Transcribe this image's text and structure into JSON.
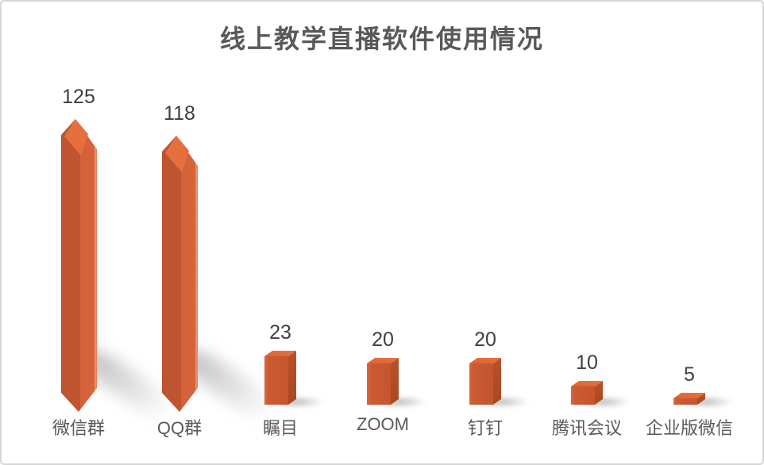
{
  "chart_data": {
    "type": "bar",
    "title": "线上教学直播软件使用情况",
    "categories": [
      "微信群",
      "QQ群",
      "瞩目",
      "ZOOM",
      "钉钉",
      "腾讯会议",
      "企业版微信"
    ],
    "values": [
      125,
      118,
      23,
      20,
      20,
      10,
      5
    ],
    "data_labels": [
      "125",
      "118",
      "23",
      "20",
      "20",
      "10",
      "5"
    ],
    "xlabel": "",
    "ylabel": "",
    "ylim": [
      0,
      125
    ],
    "axes_visible": false,
    "grid": false,
    "legend": false,
    "style_note": "3D orange columns: two tallest are pointed crystal/pencil shapes, shorter ones are 3D boxes, soft gray cast shadows",
    "colors": {
      "bar_dark_facet": "#c05631",
      "bar_light_facet": "#d4613a",
      "bar_tip_highlight": "#e66f3e",
      "bar_edge_highlight": "#ef9d74",
      "box_front": "#cb5a32",
      "box_side": "#b04d27",
      "box_top": "#e06a3a",
      "title_color": "#595959",
      "category_label_color": "#595959",
      "value_label_color": "#3f3f3f",
      "frame_border": "#d6d6d6",
      "background": "#ffffff"
    }
  }
}
